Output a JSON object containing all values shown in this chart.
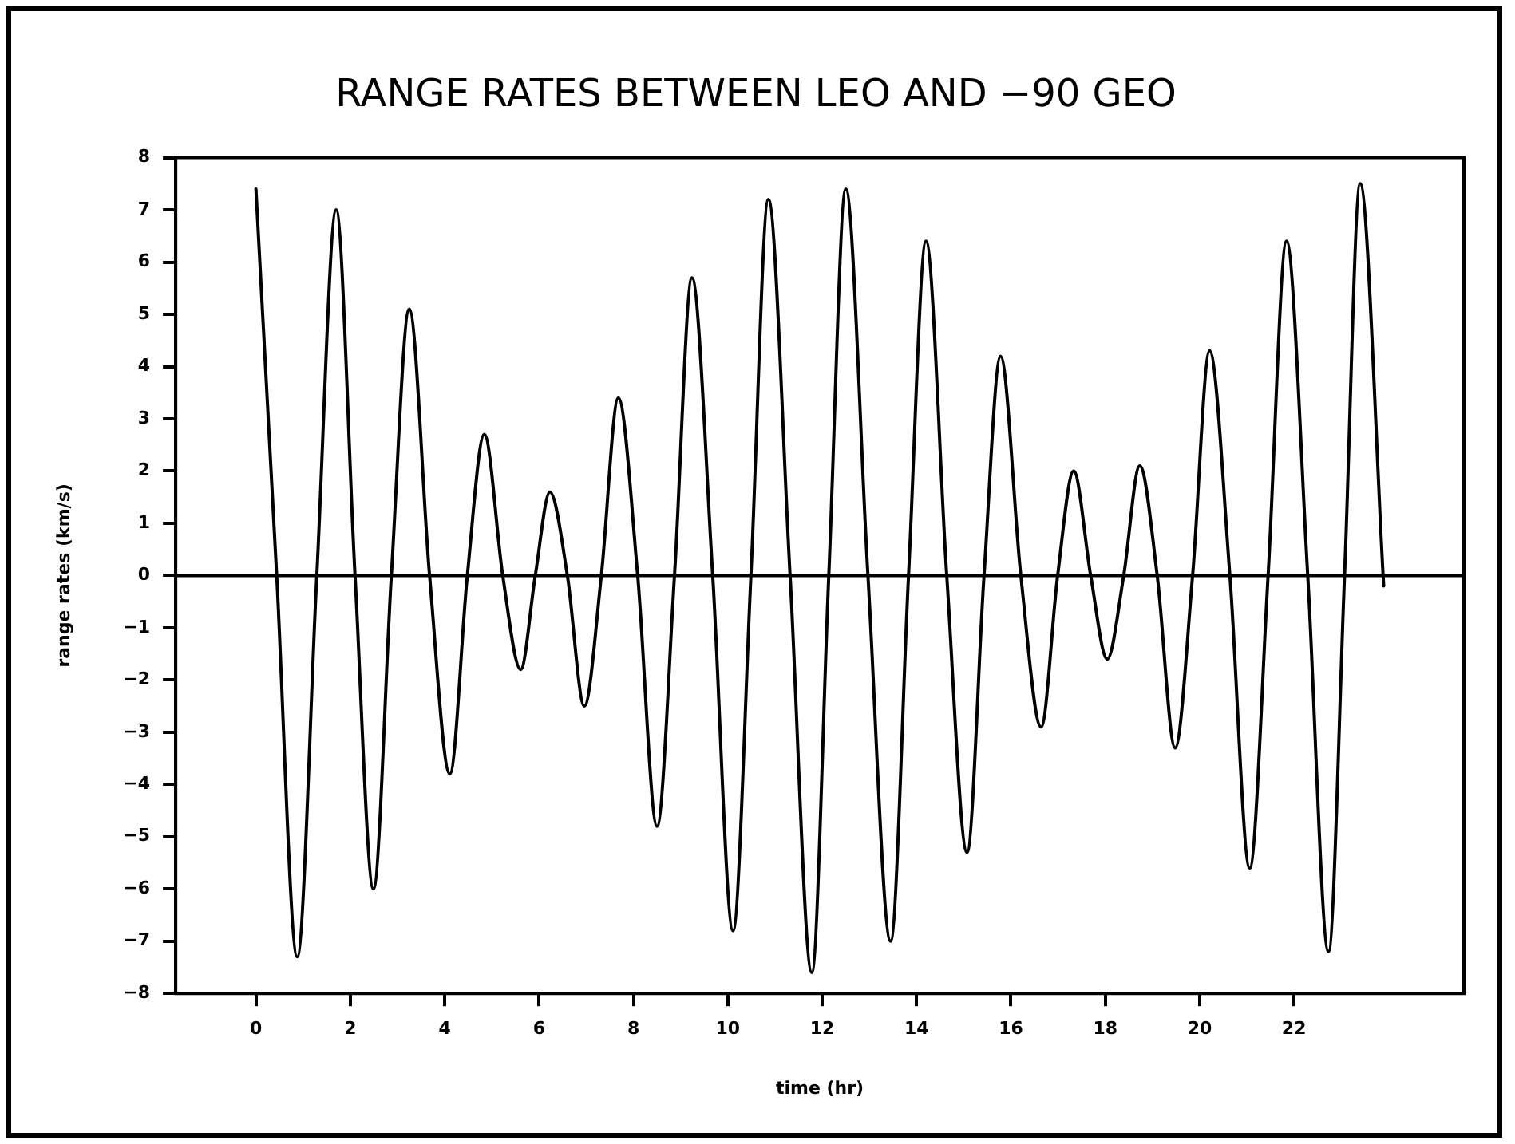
{
  "chart_data": {
    "type": "line",
    "title": "RANGE RATES BETWEEN LEO AND −90 GEO",
    "xlabel": "time (hr)",
    "ylabel": "range rates (km/s)",
    "x": [
      0,
      0.44,
      0.875,
      1.29,
      1.7,
      2.1,
      2.49,
      2.87,
      3.25,
      3.68,
      4.11,
      4.48,
      4.84,
      5.23,
      5.61,
      5.92,
      6.23,
      6.6,
      6.96,
      7.32,
      7.68,
      8.09,
      8.5,
      8.87,
      9.24,
      9.68,
      10.11,
      10.49,
      10.86,
      11.32,
      11.78,
      12.14,
      12.5,
      12.97,
      13.45,
      13.83,
      14.2,
      14.64,
      15.07,
      15.43,
      15.78,
      16.21,
      16.64,
      16.99,
      17.33,
      17.69,
      18.04,
      18.39,
      18.73,
      19.1,
      19.48,
      19.85,
      20.21,
      20.64,
      21.06,
      21.45,
      21.84,
      22.29,
      22.73,
      23.07,
      23.4,
      23.9
    ],
    "series": [
      {
        "color": "#000000",
        "values": [
          7.4,
          0,
          -7.3,
          0,
          7.0,
          0,
          -6.0,
          0,
          5.1,
          0,
          -3.8,
          0,
          2.7,
          0,
          -1.8,
          0,
          1.6,
          0,
          -2.5,
          0,
          3.4,
          0,
          -4.8,
          0,
          5.7,
          0,
          -6.8,
          0,
          7.2,
          0,
          -7.6,
          0,
          7.4,
          0,
          -7.0,
          0,
          6.4,
          0,
          -5.3,
          0,
          4.2,
          0,
          -2.9,
          0,
          2.0,
          0,
          -1.6,
          0,
          2.1,
          0,
          -3.3,
          0,
          4.3,
          0,
          -5.6,
          0,
          6.4,
          0,
          -7.2,
          0,
          7.5,
          -0.2
        ]
      }
    ],
    "xlim": [
      -1.7,
      25.6
    ],
    "xticks": [
      0,
      2,
      4,
      6,
      8,
      10,
      12,
      14,
      16,
      18,
      20,
      22
    ],
    "ylim": [
      -8,
      8
    ],
    "yticks": [
      -8,
      -7,
      -6,
      -5,
      -4,
      -3,
      -2,
      -1,
      0,
      1,
      2,
      3,
      4,
      5,
      6,
      7,
      8
    ],
    "ref_lines": [
      {
        "axis": "y",
        "value": 0,
        "color": "#000000"
      }
    ],
    "grid": false,
    "legend": false,
    "marker": "none",
    "line_style": "solid"
  }
}
